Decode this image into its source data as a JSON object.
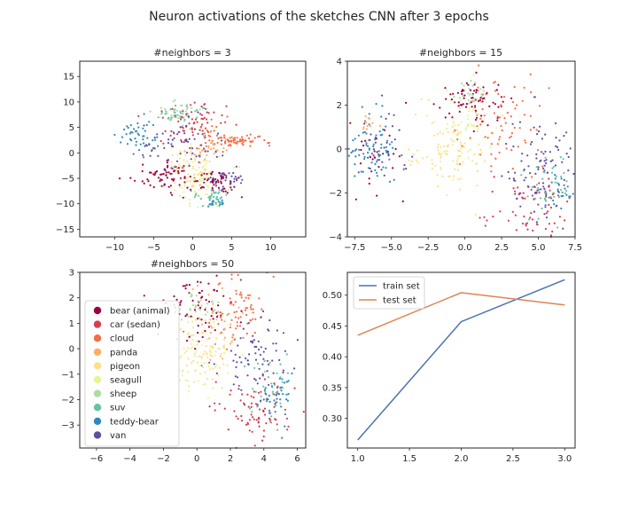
{
  "figure": {
    "suptitle": "Neuron activations of the sketches CNN after 3 epochs"
  },
  "chart_data": [
    {
      "type": "scatter",
      "title": "#neighbors = 3",
      "xlim": [
        -14.5,
        14.5
      ],
      "ylim": [
        -16.5,
        18
      ],
      "xticks": [
        -10,
        -5,
        0,
        5,
        10
      ],
      "yticks": [
        -15,
        -10,
        -5,
        0,
        5,
        10,
        15
      ],
      "grid": false,
      "seed": 3,
      "clusters": [
        {
          "class": 0,
          "cx": -3,
          "cy": -4.5,
          "sx": 2.2,
          "sy": 1.4,
          "n": 70
        },
        {
          "class": 0,
          "cx": 3,
          "cy": -5.5,
          "sx": 1.5,
          "sy": 1.2,
          "n": 55
        },
        {
          "class": 1,
          "cx": 0,
          "cy": 6,
          "sx": 2.5,
          "sy": 2,
          "n": 60
        },
        {
          "class": 2,
          "cx": 6,
          "cy": 2.5,
          "sx": 2,
          "sy": 0.5,
          "n": 55
        },
        {
          "class": 2,
          "cx": 2,
          "cy": 3,
          "sx": 1.5,
          "sy": 1.5,
          "n": 30
        },
        {
          "class": 3,
          "cx": 2,
          "cy": 1,
          "sx": 1.5,
          "sy": 1.5,
          "n": 30
        },
        {
          "class": 4,
          "cx": 0,
          "cy": -3,
          "sx": 2,
          "sy": 2.5,
          "n": 70
        },
        {
          "class": 5,
          "cx": 0.5,
          "cy": -6,
          "sx": 1.5,
          "sy": 2,
          "n": 55
        },
        {
          "class": 6,
          "cx": -2,
          "cy": 8,
          "sx": 1.2,
          "sy": 1.2,
          "n": 35
        },
        {
          "class": 7,
          "cx": 2.5,
          "cy": -9,
          "sx": 1.2,
          "sy": 0.8,
          "n": 40
        },
        {
          "class": 7,
          "cx": -1.5,
          "cy": 7.5,
          "sx": 1.5,
          "sy": 1,
          "n": 30
        },
        {
          "class": 8,
          "cx": -7,
          "cy": 3,
          "sx": 1.2,
          "sy": 1.6,
          "n": 45
        },
        {
          "class": 8,
          "cx": 3,
          "cy": -10,
          "sx": 0.6,
          "sy": 0.4,
          "n": 15
        },
        {
          "class": 9,
          "cx": -1,
          "cy": 2,
          "sx": 2.5,
          "sy": 2.5,
          "n": 70
        },
        {
          "class": 9,
          "cx": 4,
          "cy": -5,
          "sx": 1.5,
          "sy": 1.2,
          "n": 35
        }
      ]
    },
    {
      "type": "scatter",
      "title": "#neighbors = 15",
      "xlim": [
        -8,
        7.5
      ],
      "ylim": [
        -4,
        4
      ],
      "xticks": [
        -7.5,
        -5.0,
        -2.5,
        0.0,
        2.5,
        5.0,
        7.5
      ],
      "yticks": [
        -4,
        -2,
        0,
        2,
        4
      ],
      "grid": false,
      "seed": 15,
      "clusters": [
        {
          "class": 0,
          "cx": 0.5,
          "cy": 2.2,
          "sx": 1.3,
          "sy": 0.6,
          "n": 70
        },
        {
          "class": 0,
          "cx": -6,
          "cy": -0.5,
          "sx": 1,
          "sy": 0.8,
          "n": 30
        },
        {
          "class": 1,
          "cx": 4.5,
          "cy": -2.5,
          "sx": 1.5,
          "sy": 0.8,
          "n": 70
        },
        {
          "class": 2,
          "cx": 2.5,
          "cy": 1.5,
          "sx": 1.3,
          "sy": 1.2,
          "n": 80
        },
        {
          "class": 3,
          "cx": -6.5,
          "cy": 1.2,
          "sx": 0.3,
          "sy": 0.3,
          "n": 12
        },
        {
          "class": 4,
          "cx": -1,
          "cy": 0,
          "sx": 1.4,
          "sy": 0.9,
          "n": 90
        },
        {
          "class": 5,
          "cx": 0,
          "cy": 0.5,
          "sx": 1.2,
          "sy": 1,
          "n": 60
        },
        {
          "class": 6,
          "cx": 0.5,
          "cy": 2.5,
          "sx": 0.5,
          "sy": 0.3,
          "n": 25
        },
        {
          "class": 7,
          "cx": 5.5,
          "cy": -1.8,
          "sx": 0.8,
          "sy": 0.8,
          "n": 45
        },
        {
          "class": 8,
          "cx": -6.5,
          "cy": 0,
          "sx": 0.9,
          "sy": 0.8,
          "n": 75
        },
        {
          "class": 8,
          "cx": 6.3,
          "cy": -2,
          "sx": 0.4,
          "sy": 0.5,
          "n": 25
        },
        {
          "class": 9,
          "cx": 5,
          "cy": -1,
          "sx": 1.3,
          "sy": 1.3,
          "n": 90
        },
        {
          "class": 9,
          "cx": -5.5,
          "cy": 0,
          "sx": 1,
          "sy": 0.9,
          "n": 30
        }
      ]
    },
    {
      "type": "scatter",
      "title": "#neighbors = 50",
      "xlim": [
        -7,
        6.5
      ],
      "ylim": [
        -3.9,
        3
      ],
      "xticks": [
        -6,
        -4,
        -2,
        0,
        2,
        4,
        6
      ],
      "yticks": [
        -3,
        -2,
        -1,
        0,
        1,
        2,
        3
      ],
      "grid": false,
      "seed": 50,
      "legend": {
        "placement": "center-left",
        "entries": [
          "bear (animal)",
          "car (sedan)",
          "cloud",
          "panda",
          "pigeon",
          "seagull",
          "sheep",
          "suv",
          "teddy-bear",
          "van"
        ]
      },
      "clusters": [
        {
          "class": 0,
          "cx": 0,
          "cy": 1.5,
          "sx": 1.2,
          "sy": 0.6,
          "n": 70
        },
        {
          "class": 1,
          "cx": 3.5,
          "cy": -2.5,
          "sx": 1.1,
          "sy": 0.7,
          "n": 80
        },
        {
          "class": 2,
          "cx": 2.5,
          "cy": 1.5,
          "sx": 0.8,
          "sy": 0.8,
          "n": 70
        },
        {
          "class": 3,
          "cx": 1,
          "cy": 1.2,
          "sx": 0.8,
          "sy": 0.6,
          "n": 30
        },
        {
          "class": 4,
          "cx": 0.5,
          "cy": 0,
          "sx": 1,
          "sy": 0.8,
          "n": 80
        },
        {
          "class": 5,
          "cx": 0,
          "cy": -0.5,
          "sx": 1.2,
          "sy": 0.7,
          "n": 50
        },
        {
          "class": 6,
          "cx": 0,
          "cy": 1.8,
          "sx": 0.6,
          "sy": 0.4,
          "n": 30
        },
        {
          "class": 7,
          "cx": 4.5,
          "cy": -1.5,
          "sx": 0.7,
          "sy": 0.7,
          "n": 40
        },
        {
          "class": 8,
          "cx": 5,
          "cy": -2,
          "sx": 0.5,
          "sy": 0.6,
          "n": 35
        },
        {
          "class": 9,
          "cx": 3.5,
          "cy": -0.5,
          "sx": 1.2,
          "sy": 1,
          "n": 90
        }
      ]
    },
    {
      "type": "line",
      "title": "",
      "x": [
        1.0,
        2.0,
        3.0
      ],
      "xlim": [
        0.9,
        3.1
      ],
      "ylim": [
        0.252,
        0.537
      ],
      "xticks": [
        1.0,
        1.5,
        2.0,
        2.5,
        3.0
      ],
      "yticks": [
        0.3,
        0.35,
        0.4,
        0.45,
        0.5
      ],
      "grid": false,
      "legend": {
        "placement": "upper-left"
      },
      "series": [
        {
          "name": "train set",
          "values": [
            0.265,
            0.457,
            0.525
          ],
          "color": "#4c72b0"
        },
        {
          "name": "test set",
          "values": [
            0.435,
            0.504,
            0.484
          ],
          "color": "#dd8452"
        }
      ]
    }
  ],
  "palette": [
    "#9e0142",
    "#d53e4f",
    "#f46d43",
    "#fdae61",
    "#fee08b",
    "#e6f598",
    "#abdda4",
    "#66c2a5",
    "#3288bd",
    "#5e4fa2"
  ]
}
